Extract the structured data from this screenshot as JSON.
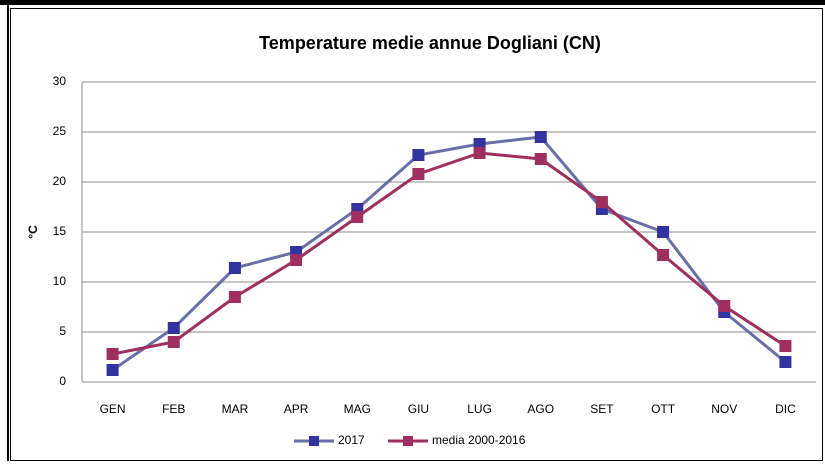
{
  "chart_data": {
    "type": "line",
    "title": "Temperature medie annue Dogliani (CN)",
    "y_label": "°C",
    "categories": [
      "GEN",
      "FEB",
      "MAR",
      "APR",
      "MAG",
      "GIU",
      "LUG",
      "AGO",
      "SET",
      "OTT",
      "NOV",
      "DIC"
    ],
    "series": [
      {
        "name": "2017",
        "color": "#3333a0",
        "line_color": "#6a6fa8",
        "values": [
          1.2,
          5.4,
          11.4,
          13.0,
          17.3,
          22.7,
          23.8,
          24.5,
          17.3,
          15.0,
          7.0,
          2.0
        ]
      },
      {
        "name": "media 2000-2016",
        "color": "#9e2f5e",
        "line_color": "#9e2f5e",
        "values": [
          2.8,
          4.0,
          8.5,
          12.2,
          16.5,
          20.8,
          22.9,
          22.3,
          18.0,
          12.7,
          7.6,
          3.6
        ]
      }
    ],
    "ylim": [
      0,
      30
    ],
    "yticks": [
      0,
      5,
      10,
      15,
      20,
      25,
      30
    ],
    "grid": true
  }
}
